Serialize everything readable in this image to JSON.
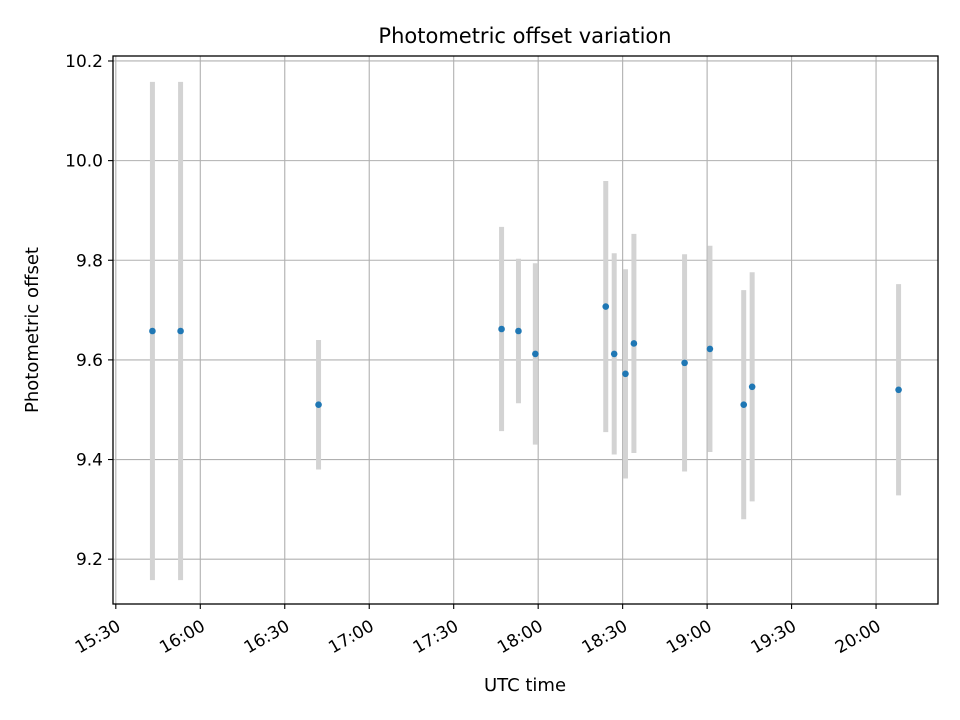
{
  "chart_data": {
    "type": "scatter",
    "title": "Photometric offset variation",
    "xlabel": "UTC time",
    "ylabel": "Photometric offset",
    "xlim": [
      "15:29",
      "20:22"
    ],
    "ylim": [
      9.11,
      10.21
    ],
    "x_ticks": [
      "15:30",
      "16:00",
      "16:30",
      "17:00",
      "17:30",
      "18:00",
      "18:30",
      "19:00",
      "19:30",
      "20:00"
    ],
    "y_ticks": [
      "9.2",
      "9.4",
      "9.6",
      "9.8",
      "10.0",
      "10.2"
    ],
    "grid": true,
    "colors": {
      "point": "#1f77b4",
      "errorbar": "#d3d3d3",
      "grid": "#b0b0b0"
    },
    "series": [
      {
        "points": [
          {
            "time": "15:43",
            "y": 9.658,
            "yerr": 0.5
          },
          {
            "time": "15:53",
            "y": 9.658,
            "yerr": 0.5
          },
          {
            "time": "16:42",
            "y": 9.51,
            "yerr": 0.13
          },
          {
            "time": "17:47",
            "y": 9.662,
            "yerr": 0.205
          },
          {
            "time": "17:53",
            "y": 9.658,
            "yerr": 0.145
          },
          {
            "time": "17:59",
            "y": 9.612,
            "yerr": 0.182
          },
          {
            "time": "18:24",
            "y": 9.707,
            "yerr": 0.252
          },
          {
            "time": "18:27",
            "y": 9.612,
            "yerr": 0.202
          },
          {
            "time": "18:31",
            "y": 9.572,
            "yerr": 0.21
          },
          {
            "time": "18:34",
            "y": 9.633,
            "yerr": 0.22
          },
          {
            "time": "18:52",
            "y": 9.594,
            "yerr": 0.218
          },
          {
            "time": "19:01",
            "y": 9.622,
            "yerr": 0.207
          },
          {
            "time": "19:13",
            "y": 9.51,
            "yerr": 0.23
          },
          {
            "time": "19:16",
            "y": 9.546,
            "yerr": 0.23
          },
          {
            "time": "20:08",
            "y": 9.54,
            "yerr": 0.212
          }
        ]
      }
    ]
  }
}
